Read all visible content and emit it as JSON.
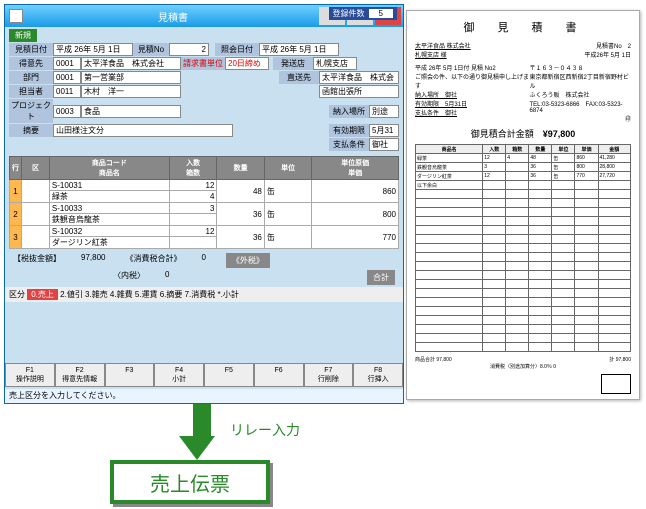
{
  "window": {
    "title": "見積書"
  },
  "count": {
    "label": "登録件数",
    "value": "5"
  },
  "badgeNew": "新規",
  "hdr": {
    "dateLbl": "見積日付",
    "date": "平成 26年 5月 1日",
    "noLbl": "見積No",
    "no": "2",
    "reqLbl": "請求書単位",
    "reqVal": "20日締め",
    "refDateLbl": "照会日付",
    "refDate": "平成 26年 5月 1日",
    "custLbl": "得意先",
    "custNo": "0001",
    "custName": "太平洋食品　株式会社",
    "deptLbl": "部門",
    "deptNo": "0001",
    "deptName": "第一営業部",
    "picLbl": "担当者",
    "picNo": "0011",
    "picName": "木村　洋一",
    "projLbl": "プロジェクト",
    "projNo": "0003",
    "projName": "食品",
    "summaryLbl": "摘要",
    "summary": "山田様注文分",
    "sideStore": "札幌支店",
    "sideComp": "太平洋食品　株式会",
    "sideShip": "函館出張所",
    "side": {
      "direct": "直送先",
      "delivArr": "別途",
      "place": "御社",
      "validLbl": "有効期限",
      "valid": "5月31",
      "payLbl": "支払条件",
      "pay": "御社"
    },
    "hasso": "発送店",
    "nouhin": "納入場所"
  },
  "gridHdr": {
    "col1": "行",
    "col2": "区",
    "col3": "商品コード",
    "col4": "商品名",
    "col5": "入数",
    "col6": "箱数",
    "col7": "数量",
    "col8": "単位",
    "col9": "単位原価",
    "col10": "単価"
  },
  "rows": [
    {
      "idx": "1",
      "code": "S-10031",
      "name": "緑茶",
      "in": "12",
      "box": "4",
      "qty": "48",
      "unit": "缶",
      "price": "860"
    },
    {
      "idx": "2",
      "code": "S-10033",
      "name": "鉄観音烏龍茶",
      "in": "3",
      "box": "",
      "qty": "36",
      "unit": "缶",
      "price": "800"
    },
    {
      "idx": "3",
      "code": "S-10032",
      "name": "ダージリン紅茶",
      "in": "12",
      "box": "",
      "qty": "36",
      "unit": "缶",
      "price": "770"
    }
  ],
  "totals": {
    "taxExLbl": "【税抜金額】",
    "taxEx": "97,800",
    "taxLbl": "《消費税合計》",
    "tax": "0",
    "innerLbl": "〈内税〉",
    "inner": "0",
    "extLbl": "《外税》",
    "extBtn": "合計"
  },
  "tabs": {
    "pre": "区分",
    "sel": "0.売上",
    "rest": "2.値引 3.雑売 4.雑費 5.運賃 6.摘要 7.消費税 *.小計"
  },
  "fkeys": [
    {
      "k": "F1",
      "t": "操作説明"
    },
    {
      "k": "F2",
      "t": "得意先情報"
    },
    {
      "k": "F3",
      "t": ""
    },
    {
      "k": "F4",
      "t": "小計"
    },
    {
      "k": "F5",
      "t": ""
    },
    {
      "k": "F6",
      "t": ""
    },
    {
      "k": "F7",
      "t": "行削除"
    },
    {
      "k": "F8",
      "t": "行挿入"
    }
  ],
  "status": "売上区分を入力してください。",
  "doc": {
    "title": "御　見　積　書",
    "to": "太平洋食品 株式会社",
    "to2": "札幌支店 様",
    "no": "見積書No　2",
    "date": "平成26年 5月 1日",
    "addr1": "〒１６３－０４３８",
    "addr2": "東京都新宿区西新宿2丁目新宿野村ビル",
    "addr3": "ふくろう販　株式会社",
    "tel": "TEL:03-5323-6866　FAX:03-5323-6874",
    "quoteDate": "平成 26年 5月 1日付 見積 No2",
    "branch": "御社",
    "expire": "5月31日",
    "amountLbl": "御見積合計金額",
    "amount": "¥97,800",
    "cols": [
      "商品名",
      "入数",
      "箱数",
      "数量",
      "単位",
      "単価",
      "金額"
    ],
    "lines": [
      [
        "緑茶",
        "12",
        "4",
        "48",
        "缶",
        "860",
        "41,280"
      ],
      [
        "鉄観音烏龍茶",
        "3",
        "",
        "36",
        "缶",
        "800",
        "28,800"
      ],
      [
        "ダージリン紅茶",
        "12",
        "",
        "36",
        "缶",
        "770",
        "27,720"
      ],
      [
        "以下余白",
        "",
        "",
        "",
        "",
        "",
        ""
      ]
    ],
    "sumLbl": "商品合計",
    "sum": "97,800",
    "taxNote": "消費税（別途加算分）8.0％",
    "taxAmt": "0",
    "totalLbl": "計",
    "total": "97,800"
  },
  "relay": "リレー入力",
  "sales": "売上伝票"
}
